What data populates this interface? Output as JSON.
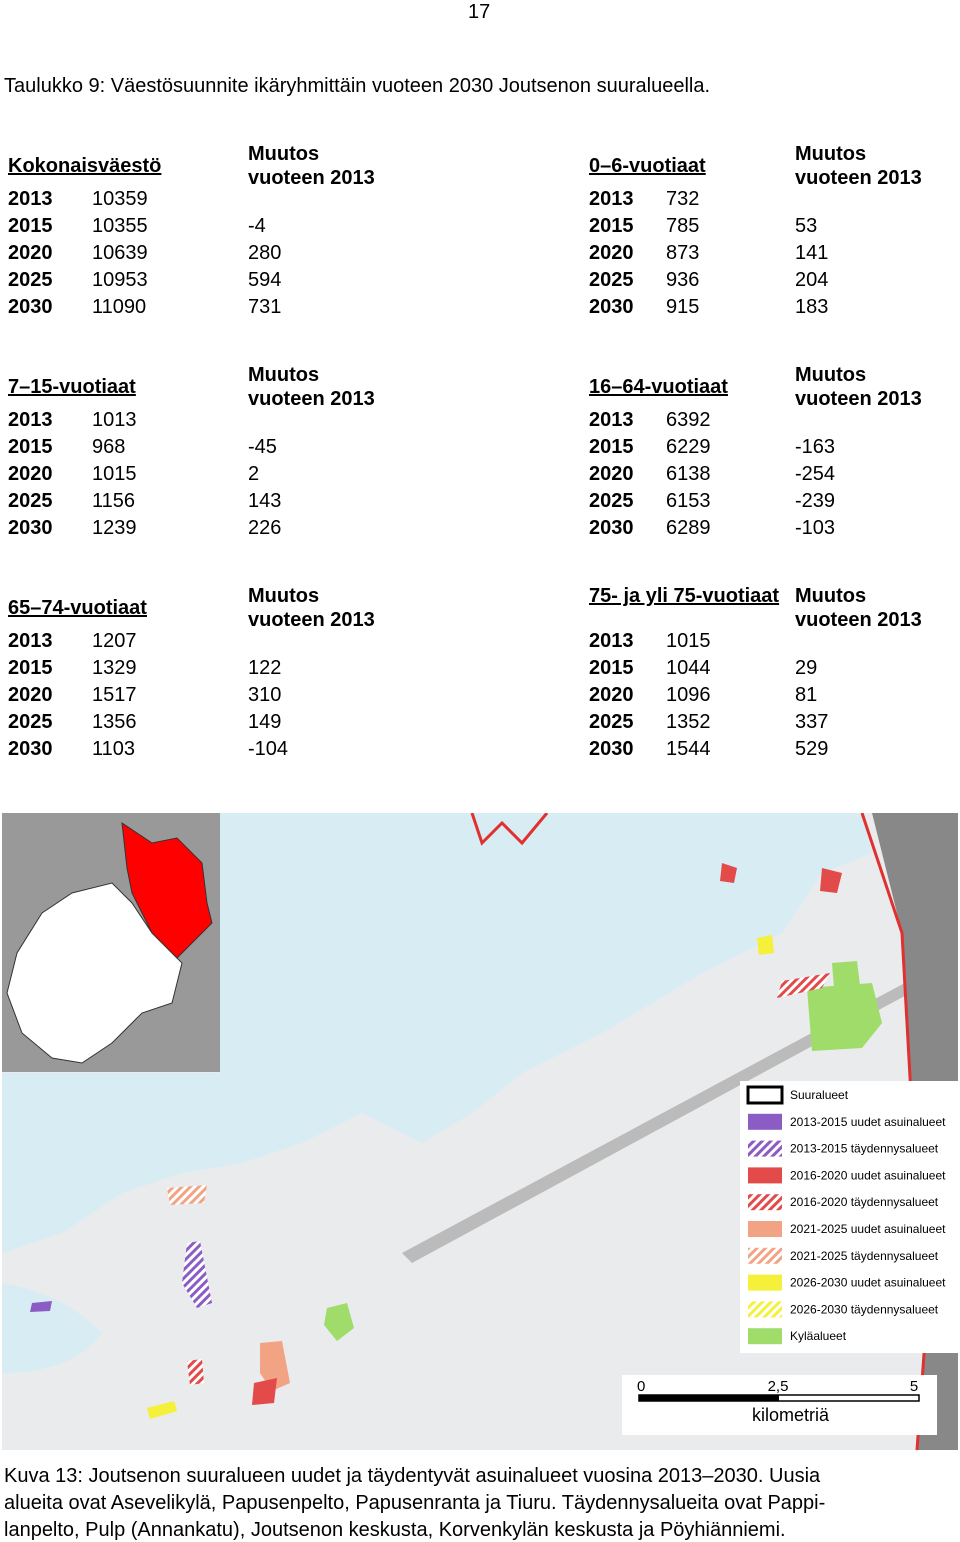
{
  "page_number": "17",
  "table_caption": "Taulukko 9: Väestösuunnite ikäryhmittäin vuoteen 2030 Joutsenon suuralueella.",
  "change_header": [
    "Muutos",
    "vuoteen 2013"
  ],
  "tables": [
    {
      "name": "Kokonaisväestö",
      "rows": [
        [
          "2013",
          10359
        ],
        [
          "2015",
          10355,
          -4
        ],
        [
          "2020",
          10639,
          280
        ],
        [
          "2025",
          10953,
          594
        ],
        [
          "2030",
          11090,
          731
        ]
      ]
    },
    {
      "name": "0–6-vuotiaat",
      "rows": [
        [
          "2013",
          732
        ],
        [
          "2015",
          785,
          53
        ],
        [
          "2020",
          873,
          141
        ],
        [
          "2025",
          936,
          204
        ],
        [
          "2030",
          915,
          183
        ]
      ]
    },
    {
      "name": "7–15-vuotiaat",
      "rows": [
        [
          "2013",
          1013
        ],
        [
          "2015",
          968,
          -45
        ],
        [
          "2020",
          1015,
          2
        ],
        [
          "2025",
          1156,
          143
        ],
        [
          "2030",
          1239,
          226
        ]
      ]
    },
    {
      "name": "16–64-vuotiaat",
      "rows": [
        [
          "2013",
          6392
        ],
        [
          "2015",
          6229,
          -163
        ],
        [
          "2020",
          6138,
          -254
        ],
        [
          "2025",
          6153,
          -239
        ],
        [
          "2030",
          6289,
          -103
        ]
      ]
    },
    {
      "name": "65–74-vuotiaat",
      "rows": [
        [
          "2013",
          1207
        ],
        [
          "2015",
          1329,
          122
        ],
        [
          "2020",
          1517,
          310
        ],
        [
          "2025",
          1356,
          149
        ],
        [
          "2030",
          1103,
          -104
        ]
      ]
    },
    {
      "name": "75- ja yli 75-vuotiaat",
      "rows": [
        [
          "2013",
          1015
        ],
        [
          "2015",
          1044,
          29
        ],
        [
          "2020",
          1096,
          81
        ],
        [
          "2025",
          1352,
          337
        ],
        [
          "2030",
          1544,
          529
        ]
      ]
    }
  ],
  "map": {
    "legend": [
      "Suuralueet",
      "2013-2015 uudet asuinalueet",
      "2013-2015 täydennysalueet",
      "2016-2020 uudet asuinalueet",
      "2016-2020 täydennysalueet",
      "2021-2025 uudet asuinalueet",
      "2021-2025 täydennysalueet",
      "2026-2030 uudet asuinalueet",
      "2026-2030 täydennysalueet",
      "Kyläalueet"
    ],
    "scale": [
      "0",
      "2,5",
      "5"
    ],
    "scale_unit": "kilometriä"
  },
  "figure_caption": [
    "Kuva 13: Joutsenon suuralueen uudet ja täydentyvät asuinalueet vuosina 2013–2030. Uusia",
    "alueita ovat Asevelikylä, Papusenpelto, Papusenranta ja Tiuru. Täydennysalueita ovat Pappi-",
    "lanpelto, Pulp (Annankatu), Joutsenon keskusta, Korvenkylän keskusta ja Pöyhiänniemi."
  ]
}
